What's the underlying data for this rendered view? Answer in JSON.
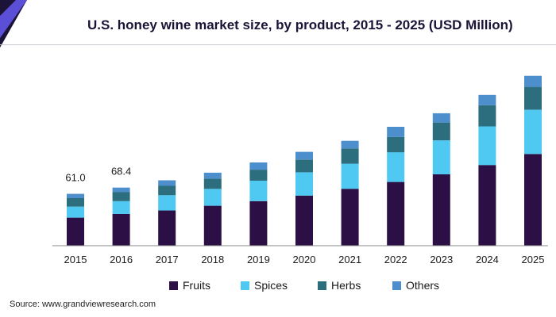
{
  "header": {
    "title": "U.S. honey wine market size, by product, 2015 - 2025 (USD Million)"
  },
  "footer": {
    "source": "Source: www.grandviewresearch.com"
  },
  "colors": {
    "logo_dark": "#1c1438",
    "logo_accent": "#5a4fd6",
    "fruits": "#2b0f45",
    "spices": "#4fc9f2",
    "herbs": "#2d6e7e",
    "others": "#4d8fcc"
  },
  "chart_data": {
    "type": "bar",
    "stacked": true,
    "title": "U.S. honey wine market size, by product, 2015 - 2025 (USD Million)",
    "xlabel": "",
    "ylabel": "",
    "categories": [
      "2015",
      "2016",
      "2017",
      "2018",
      "2019",
      "2020",
      "2021",
      "2022",
      "2023",
      "2024",
      "2025"
    ],
    "series": [
      {
        "name": "Fruits",
        "color": "#2b0f45",
        "values": [
          33.0,
          37.5,
          41.5,
          47.0,
          52.5,
          59.0,
          67.0,
          75.0,
          84.0,
          95.0,
          108.0
        ]
      },
      {
        "name": "Spices",
        "color": "#4fc9f2",
        "values": [
          13.0,
          15.0,
          18.0,
          20.0,
          24.0,
          27.5,
          29.5,
          35.0,
          40.0,
          45.5,
          52.0
        ]
      },
      {
        "name": "Herbs",
        "color": "#2d6e7e",
        "values": [
          10.0,
          10.5,
          11.0,
          12.0,
          13.0,
          15.0,
          18.0,
          18.0,
          21.0,
          25.0,
          27.0
        ]
      },
      {
        "name": "Others",
        "color": "#4d8fcc",
        "values": [
          5.0,
          5.4,
          6.5,
          7.0,
          8.5,
          9.0,
          9.0,
          12.0,
          11.0,
          12.0,
          13.0
        ]
      }
    ],
    "data_labels": [
      {
        "category": "2015",
        "text": "61.0"
      },
      {
        "category": "2016",
        "text": "68.4"
      }
    ],
    "ylim": [
      0,
      210
    ],
    "y_axis_visible": false,
    "grid": false,
    "legend_position": "bottom"
  }
}
